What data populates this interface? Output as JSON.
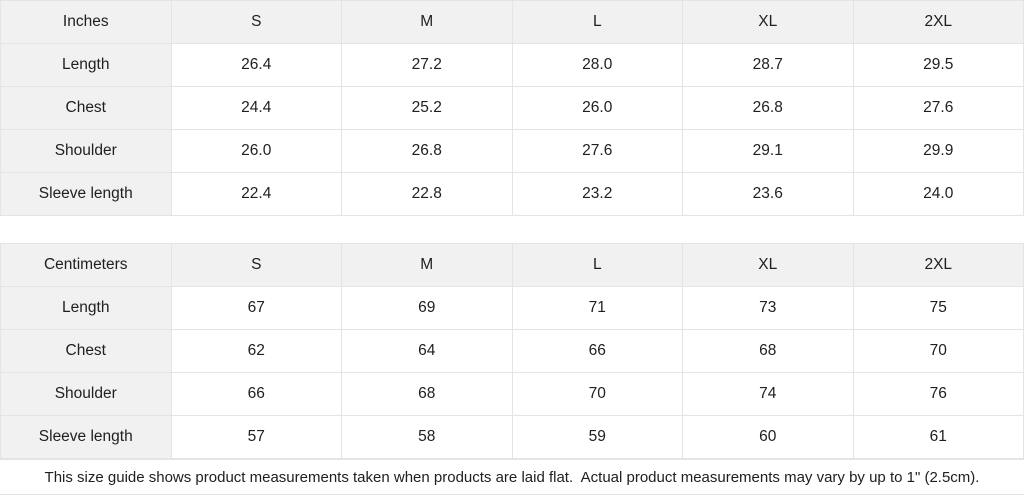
{
  "style": {
    "background": "#ffffff",
    "header_cell_bg": "#f1f1f1",
    "border_color": "#e4e4e4",
    "text_color": "#202020"
  },
  "chart_data": [
    {
      "type": "table",
      "unit": "Inches",
      "columns": [
        "S",
        "M",
        "L",
        "XL",
        "2XL"
      ],
      "rows": [
        {
          "label": "Length",
          "values": [
            "26.4",
            "27.2",
            "28.0",
            "28.7",
            "29.5"
          ]
        },
        {
          "label": "Chest",
          "values": [
            "24.4",
            "25.2",
            "26.0",
            "26.8",
            "27.6"
          ]
        },
        {
          "label": "Shoulder",
          "values": [
            "26.0",
            "26.8",
            "27.6",
            "29.1",
            "29.9"
          ]
        },
        {
          "label": "Sleeve length",
          "values": [
            "22.4",
            "22.8",
            "23.2",
            "23.6",
            "24.0"
          ]
        }
      ]
    },
    {
      "type": "table",
      "unit": "Centimeters",
      "columns": [
        "S",
        "M",
        "L",
        "XL",
        "2XL"
      ],
      "rows": [
        {
          "label": "Length",
          "values": [
            "67",
            "69",
            "71",
            "73",
            "75"
          ]
        },
        {
          "label": "Chest",
          "values": [
            "62",
            "64",
            "66",
            "68",
            "70"
          ]
        },
        {
          "label": "Shoulder",
          "values": [
            "66",
            "68",
            "70",
            "74",
            "76"
          ]
        },
        {
          "label": "Sleeve length",
          "values": [
            "57",
            "58",
            "59",
            "60",
            "61"
          ]
        }
      ]
    }
  ],
  "footer": {
    "note": "This size guide shows product measurements taken when products are laid flat.  Actual product measurements may vary by up to 1\" (2.5cm)."
  }
}
